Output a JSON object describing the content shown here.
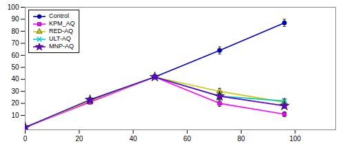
{
  "chart_data": {
    "type": "line",
    "x": [
      0,
      24,
      48,
      72,
      96
    ],
    "series": [
      {
        "name": "Control",
        "color": "#0000CC",
        "marker": "circle",
        "line_style": "solid",
        "values": [
          0,
          22,
          42,
          64,
          87
        ],
        "yerr": [
          0,
          1.5,
          1.5,
          3,
          3
        ]
      },
      {
        "name": "KPM_AQ",
        "color": "#FF00FF",
        "marker": "square",
        "line_style": "solid",
        "values": [
          0,
          21,
          42,
          20,
          11
        ],
        "yerr": [
          0,
          1.5,
          1.5,
          2.5,
          2
        ]
      },
      {
        "name": "RED-AQ",
        "color": "#CCCC00",
        "marker": "triangle",
        "line_style": "solid",
        "values": [
          0,
          22,
          42,
          30,
          21
        ],
        "yerr": [
          0,
          1.5,
          1.5,
          2.5,
          2
        ]
      },
      {
        "name": "ULT-AQ",
        "color": "#00CCCC",
        "marker": "x",
        "line_style": "solid",
        "values": [
          0,
          23,
          42,
          26,
          22
        ],
        "yerr": [
          0,
          1.5,
          1.5,
          2.5,
          2
        ]
      },
      {
        "name": "MNP-AQ",
        "color": "#6600CC",
        "marker": "star",
        "line_style": "solid",
        "values": [
          0,
          23,
          42,
          26,
          18
        ],
        "yerr": [
          0,
          1.5,
          1.5,
          2.5,
          2
        ]
      }
    ],
    "xlim": [
      0,
      115
    ],
    "ylim": [
      -2,
      100
    ],
    "xticks": [
      0,
      20,
      40,
      60,
      80,
      100
    ],
    "yticks": [
      10,
      20,
      30,
      40,
      50,
      60,
      70,
      80,
      90,
      100
    ],
    "grid": false,
    "legend": "upper left"
  }
}
